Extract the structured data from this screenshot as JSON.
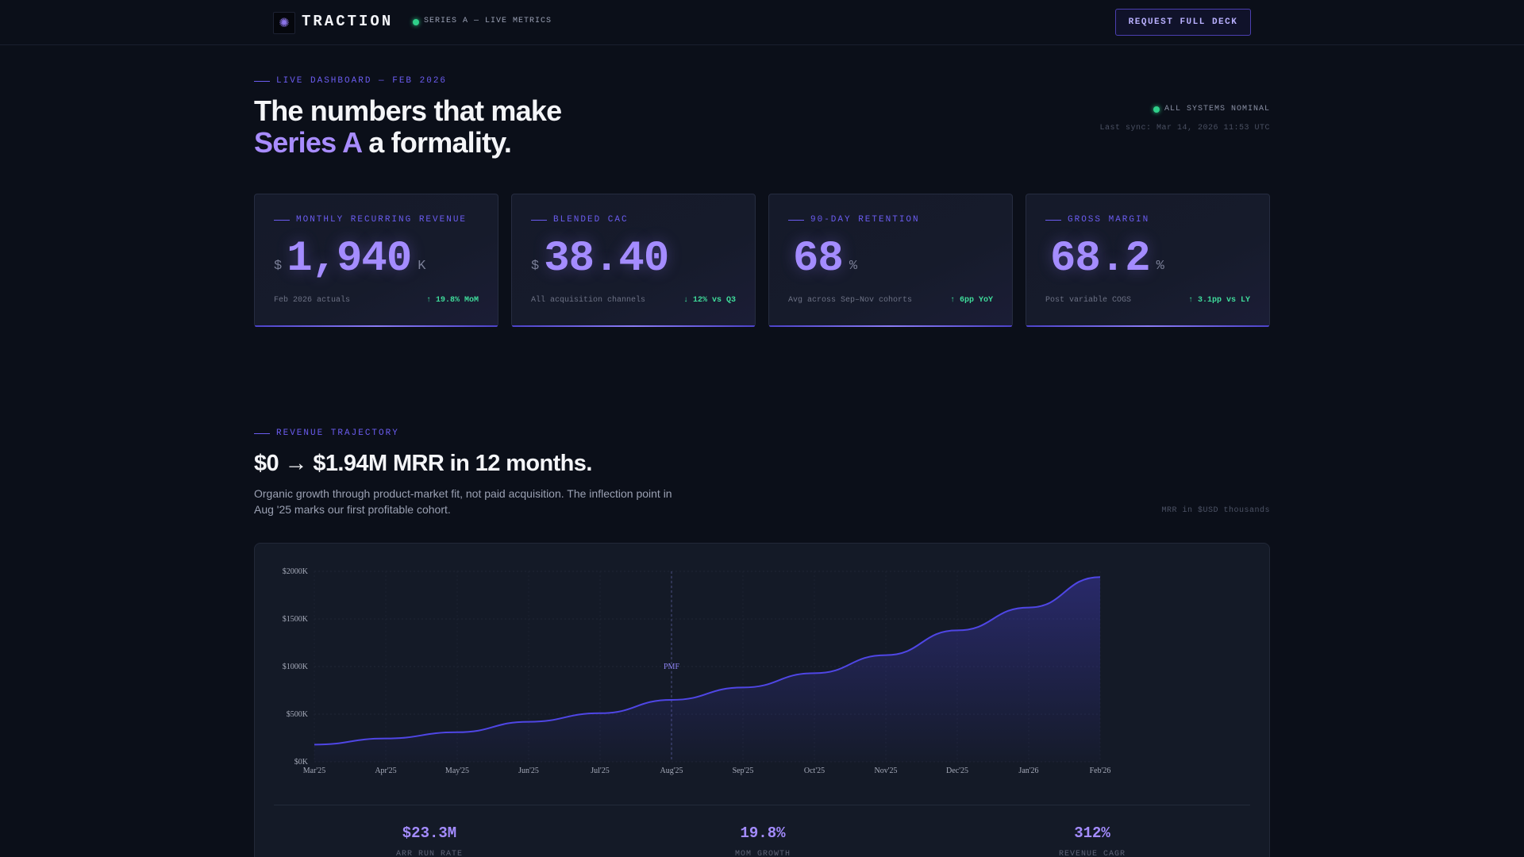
{
  "nav": {
    "logo_glyph": "✺",
    "brand": "TRACTION",
    "status": "SERIES A — LIVE METRICS",
    "cta": "REQUEST FULL DECK"
  },
  "hero": {
    "eyebrow": "LIVE DASHBOARD — FEB 2026",
    "title_line1": "The numbers that make",
    "title_accent": "Series A",
    "title_rest": " a formality.",
    "system_status": "ALL SYSTEMS NOMINAL",
    "last_sync": "Last sync: Mar 14, 2026 11:53 UTC"
  },
  "kpis": [
    {
      "label": "MONTHLY RECURRING REVENUE",
      "prefix": "$",
      "value": "1,940",
      "suffix": "K",
      "sub": "Feb 2026 actuals",
      "delta": "↑ 19.8% MoM"
    },
    {
      "label": "BLENDED CAC",
      "prefix": "$",
      "value": "38.40",
      "suffix": "",
      "sub": "All acquisition channels",
      "delta": "↓ 12% vs Q3"
    },
    {
      "label": "90-DAY RETENTION",
      "prefix": "",
      "value": "68",
      "suffix": "%",
      "sub": "Avg across Sep–Nov cohorts",
      "delta": "↑ 6pp YoY"
    },
    {
      "label": "GROSS MARGIN",
      "prefix": "",
      "value": "68.2",
      "suffix": "%",
      "sub": "Post variable COGS",
      "delta": "↑ 3.1pp vs LY"
    }
  ],
  "revenue": {
    "eyebrow": "REVENUE TRAJECTORY",
    "title": "$0 → $1.94M MRR in 12 months.",
    "description": "Organic growth through product-market fit, not paid acquisition. The inflection point in Aug '25 marks our first profitable cohort.",
    "unit_note": "MRR in $USD thousands"
  },
  "chart_data": {
    "type": "area",
    "x": [
      "Mar'25",
      "Apr'25",
      "May'25",
      "Jun'25",
      "Jul'25",
      "Aug'25",
      "Sep'25",
      "Oct'25",
      "Nov'25",
      "Dec'25",
      "Jan'26",
      "Feb'26"
    ],
    "series": [
      {
        "values": [
          180,
          245,
          310,
          420,
          510,
          650,
          780,
          930,
          1120,
          1380,
          1620,
          1940
        ]
      }
    ],
    "y_ticks": [
      "$0K",
      "$500K",
      "$1000K",
      "$1500K",
      "$2000K"
    ],
    "ylim": [
      0,
      2000
    ],
    "annotation": {
      "x": "Aug'25",
      "label": "PMF"
    },
    "grid": true,
    "line_color": "#4f46e5"
  },
  "stats": [
    {
      "value": "$23.3M",
      "label": "ARR RUN RATE"
    },
    {
      "value": "19.8%",
      "label": "MOM GROWTH"
    },
    {
      "value": "312%",
      "label": "REVENUE CAGR"
    }
  ],
  "colors": {
    "background": "#0b0f19",
    "accent": "#a48cff",
    "positive": "#3fdc9b",
    "status_ok": "#2fd08a"
  }
}
